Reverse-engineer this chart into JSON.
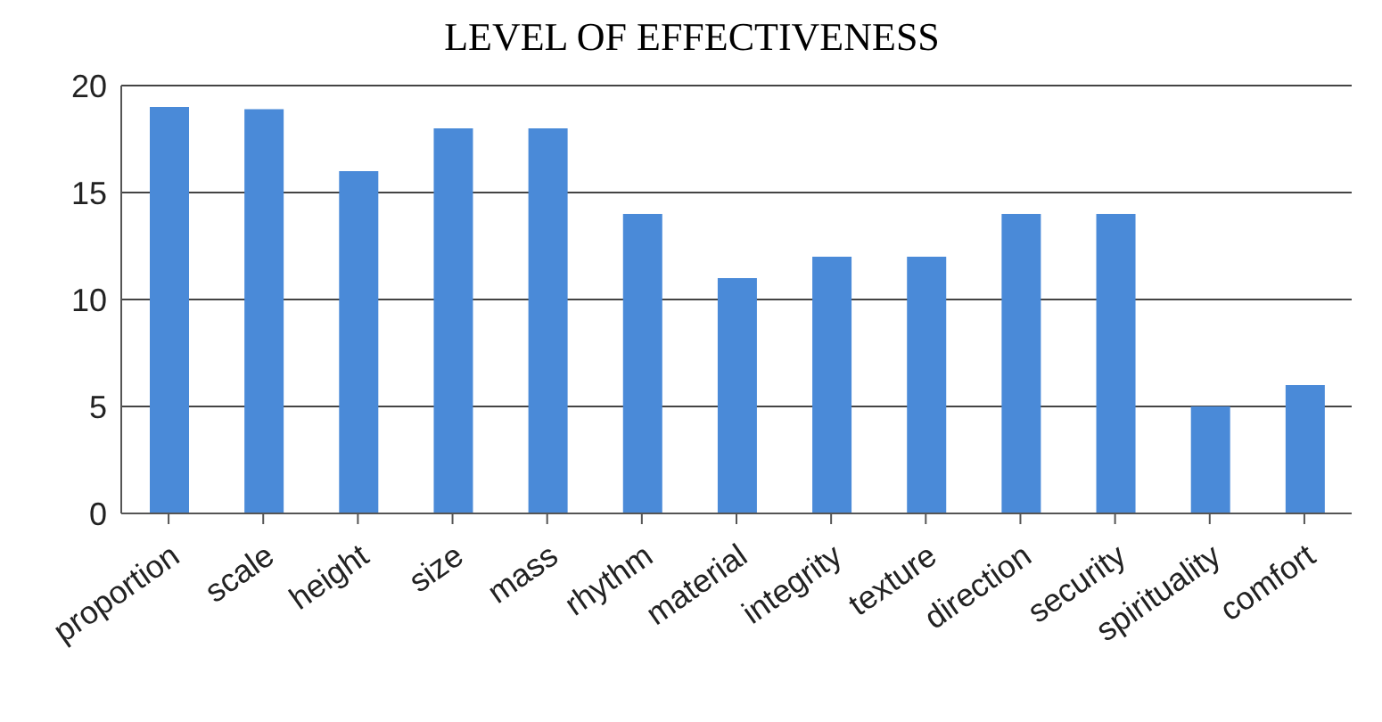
{
  "chart_data": {
    "type": "bar",
    "title": "LEVEL OF EFFECTIVENESS",
    "categories": [
      "proportion",
      "scale",
      "height",
      "size",
      "mass",
      "rhythm",
      "material",
      "integrity",
      "texture",
      "direction",
      "security",
      "spirituality",
      "comfort"
    ],
    "values": [
      19,
      18.9,
      16,
      18,
      18,
      14,
      11,
      12,
      12,
      14,
      14,
      5,
      6
    ],
    "color": "#4a8ad8",
    "ylim": [
      0,
      20
    ],
    "yticks": [
      0,
      5,
      10,
      15,
      20
    ],
    "grid": "y"
  }
}
